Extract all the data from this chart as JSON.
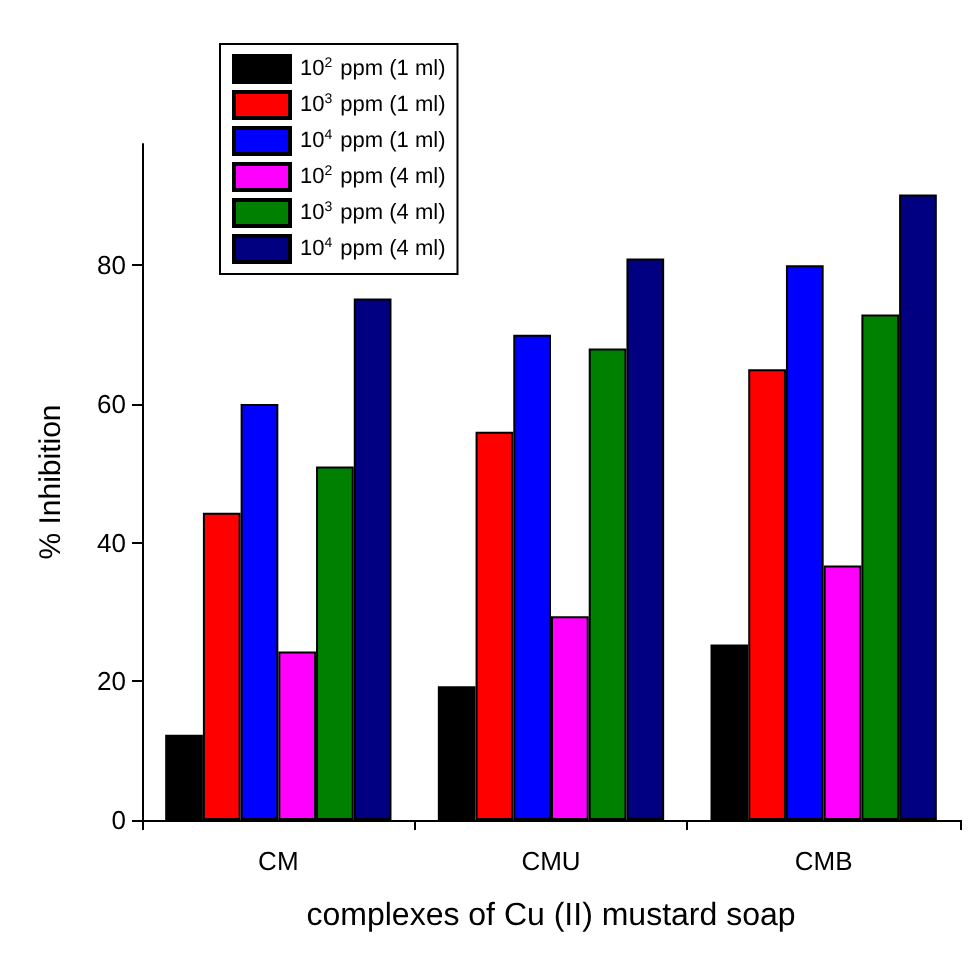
{
  "chart_data": {
    "type": "bar",
    "xlabel": "complexes of Cu (II) mustard soap",
    "ylabel": "% Inhibition",
    "categories": [
      "CM",
      "CMU",
      "CMB"
    ],
    "series": [
      {
        "name": "10$^{2}$ ppm (1 ml)",
        "color": "#000000",
        "values": [
          12.3,
          19.3,
          25.3
        ]
      },
      {
        "name": "10$^{3}$ ppm (1 ml)",
        "color": "#ff0000",
        "values": [
          44.3,
          56,
          65
        ]
      },
      {
        "name": "10$^{4}$ ppm (1 ml)",
        "color": "#0000ff",
        "values": [
          60,
          70,
          80
        ]
      },
      {
        "name": "10$^{2}$ ppm (4 ml)",
        "color": "#ff00ff",
        "values": [
          24.3,
          29.4,
          36.7
        ]
      },
      {
        "name": "10$^{3}$ ppm (4 ml)",
        "color": "#008000",
        "values": [
          51,
          68,
          72.9
        ]
      },
      {
        "name": "10$^{4}$ ppm (4 ml)",
        "color": "#000080",
        "values": [
          75.2,
          81,
          90.2
        ]
      }
    ],
    "ylim": [
      0,
      97.5
    ],
    "yticks": [
      0,
      20,
      40,
      60,
      80
    ],
    "grid": false,
    "legend": "top left"
  }
}
